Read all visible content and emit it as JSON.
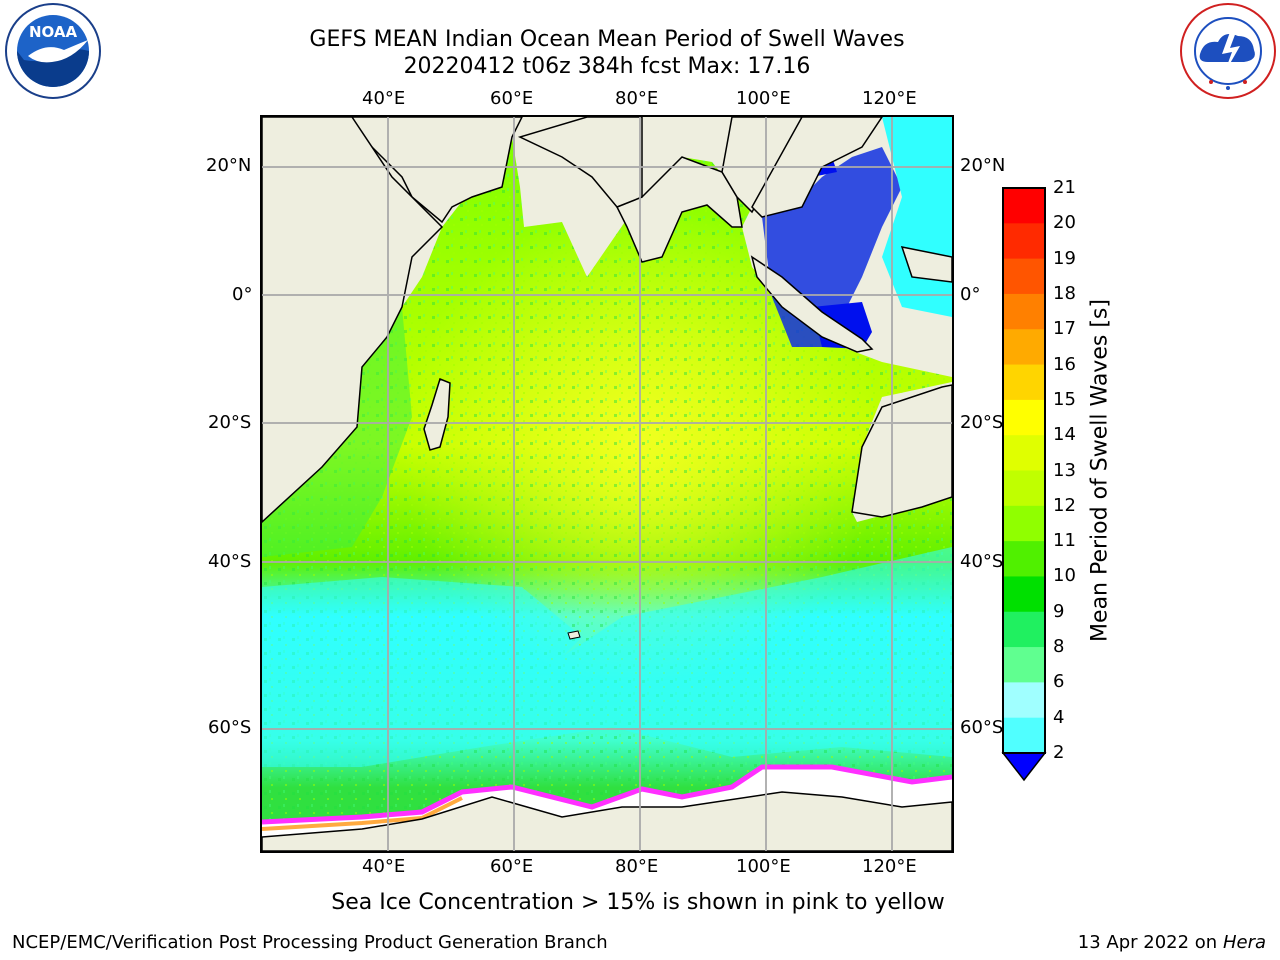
{
  "title": {
    "line1": "GEFS MEAN Indian Ocean Mean Period of Swell Waves",
    "line2": "20220412 t06z 384h fcst   Max: 17.16"
  },
  "logos": {
    "left": {
      "name": "noaa-logo",
      "text": "NOAA",
      "ring_text": "NATIONAL OCEANIC AND ATMOSPHERIC ADMINISTRATION · U.S. DEPARTMENT OF COMMERCE"
    },
    "right": {
      "name": "nws-logo",
      "ring_text": "NATIONAL WEATHER SERVICE"
    }
  },
  "map": {
    "lon_ticks": [
      "40°E",
      "60°E",
      "80°E",
      "100°E",
      "120°E"
    ],
    "lat_ticks_left": [
      "20°N",
      "0°",
      "20°S",
      "40°S",
      "60°S"
    ],
    "lat_ticks_right": [
      "20°N",
      "0°",
      "20°S",
      "40°S",
      "60°S"
    ],
    "grid": true,
    "colors": {
      "land": "#eeeedf",
      "ocean_low": "#20ff20",
      "ocean_mid": "#a8ff00",
      "ocean_high": "#f0ff20",
      "south": "#30ffff",
      "indo": "#0010ee",
      "ice": "#ffffff"
    }
  },
  "colorbar": {
    "label": "Mean Period of Swell Waves [s]",
    "ticks": [
      "21",
      "20",
      "19",
      "18",
      "17",
      "16",
      "15",
      "14",
      "13",
      "12",
      "11",
      "10",
      "9",
      "8",
      "6",
      "4",
      "2"
    ],
    "colors": [
      "#ff0000",
      "#ff2a00",
      "#ff5500",
      "#ff8000",
      "#ffaa00",
      "#ffd500",
      "#ffff00",
      "#e0ff00",
      "#c0ff00",
      "#90ff00",
      "#50f000",
      "#00e000",
      "#20f060",
      "#60ff90",
      "#a0ffff",
      "#50ffff",
      "#00ffff",
      "#00e0ff",
      "#0080ff"
    ],
    "extend_color": "#0000ff"
  },
  "note": "Sea Ice Concentration > 15% is shown in pink to yellow",
  "footer": {
    "left": "NCEP/EMC/Verification Post Processing Product Generation Branch",
    "date": "13 Apr 2022 on ",
    "machine": "Hera"
  }
}
